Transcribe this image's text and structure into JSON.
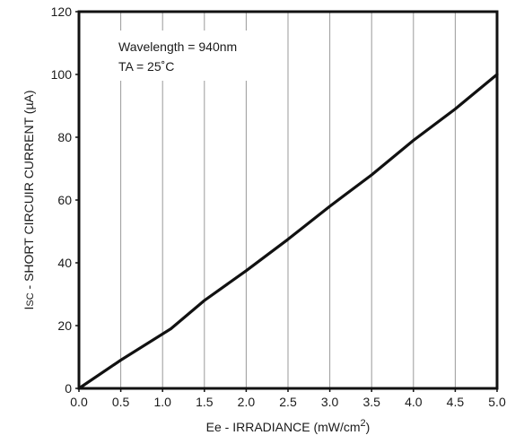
{
  "chart_data": {
    "type": "line",
    "title": "",
    "xlabel": "Ee - IRRADIANCE (mW/cm²)",
    "xlabel_main": "Ee - IRRADIANCE (mW/cm",
    "xlabel_sup": "2",
    "xlabel_end": ")",
    "ylabel": "ISC - SHORT CIRCUIR CURRENT (µA)",
    "ylabel_main": "I",
    "ylabel_sub": "SC",
    "ylabel_rest": " - SHORT CIRCUIR CURRENT (µA)",
    "xlim": [
      0,
      5
    ],
    "ylim": [
      0,
      120
    ],
    "x_ticks": [
      "0.0",
      "0.5",
      "1.0",
      "1.5",
      "2.0",
      "2.5",
      "3.0",
      "3.5",
      "4.0",
      "4.5",
      "5.0"
    ],
    "y_ticks": [
      "0",
      "20",
      "40",
      "60",
      "80",
      "100",
      "120"
    ],
    "grid": "vertical",
    "annotations": [
      "Wavelength = 940nm",
      "TA = 25˚C"
    ],
    "series": [
      {
        "x": [
          0,
          0.5,
          1.1,
          1.5,
          2.0,
          2.5,
          3.0,
          3.5,
          4.0,
          4.5,
          5.0
        ],
        "values": [
          0,
          9,
          19,
          28,
          37.5,
          47.5,
          58,
          68,
          79,
          89,
          100
        ],
        "color": "#111111"
      }
    ]
  }
}
